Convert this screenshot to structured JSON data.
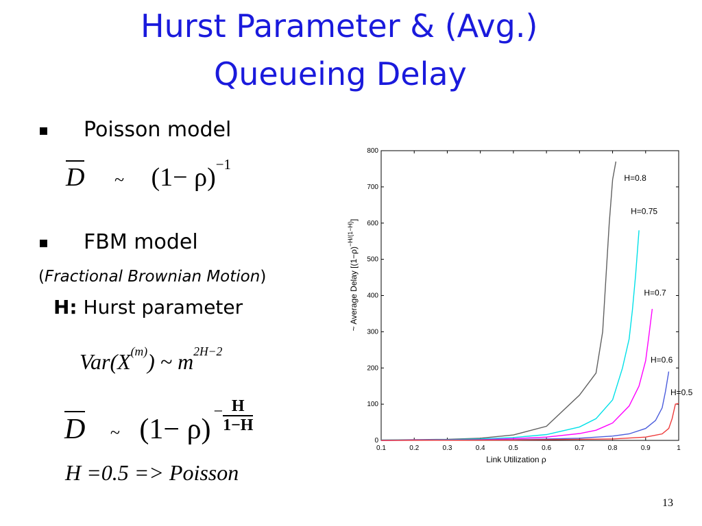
{
  "slide": {
    "title_line1": "Hurst Parameter & (Avg.)",
    "title_line2": "Queueing Delay",
    "bullet_mark": "▪",
    "bullet1": "Poisson model",
    "formula1": {
      "lhs": "D",
      "tilde": "~",
      "rhs": "(1− ρ)",
      "exponent": "−1"
    },
    "bullet2": "FBM model",
    "fbm_open": "(",
    "fbm_full": "Fractional Brownian Motion",
    "fbm_close": ")",
    "h_label": "H:",
    "h_text": "Hurst parameter",
    "formula2": {
      "lhs": "Var(X",
      "sup": "(m)",
      "mid": ") ~ m",
      "exp": "2H−2"
    },
    "formula3": {
      "lhs": "D",
      "tilde": "~",
      "rhs": "(1− ρ)",
      "exp_sign": "−",
      "exp_num": "H",
      "exp_den": "1−H"
    },
    "poisson_eq": "H =0.5 => Poisson",
    "page_number": "13"
  },
  "chart_data": {
    "type": "line",
    "xlabel": "Link Utilization ρ",
    "ylabel": "~ Average Delay [(1−ρ)^(−H/(1−H))]",
    "ylabel_main": "~ Average Delay [(1−ρ)",
    "ylabel_exp": "−H/(1−H)",
    "ylabel_close": "]",
    "xlim": [
      0.1,
      1
    ],
    "ylim": [
      0,
      800
    ],
    "x_ticks": [
      "0.1",
      "0.2",
      "0.3",
      "0.4",
      "0.5",
      "0.6",
      "0.7",
      "0.8",
      "0.9",
      "1"
    ],
    "y_ticks": [
      "0",
      "100",
      "200",
      "300",
      "400",
      "500",
      "600",
      "700",
      "800"
    ],
    "grid": false,
    "series": [
      {
        "name": "H=0.8",
        "color": "#606060",
        "x": [
          0.1,
          0.2,
          0.3,
          0.4,
          0.5,
          0.6,
          0.7,
          0.75,
          0.77,
          0.78,
          0.79,
          0.8,
          0.81
        ],
        "y": [
          1,
          2,
          3,
          6,
          15,
          39,
          125,
          186,
          300,
          450,
          600,
          720,
          770
        ]
      },
      {
        "name": "H=0.75",
        "color": "#00e0e8",
        "x": [
          0.1,
          0.2,
          0.3,
          0.4,
          0.5,
          0.6,
          0.7,
          0.75,
          0.8,
          0.83,
          0.85,
          0.86,
          0.87,
          0.88
        ],
        "y": [
          1,
          1,
          2,
          4,
          8,
          16,
          37,
          60,
          112,
          200,
          280,
          360,
          460,
          580
        ]
      },
      {
        "name": "H=0.7",
        "color": "#ff00ff",
        "x": [
          0.1,
          0.2,
          0.3,
          0.4,
          0.5,
          0.6,
          0.7,
          0.75,
          0.8,
          0.85,
          0.88,
          0.9,
          0.91,
          0.92
        ],
        "y": [
          0,
          1,
          1,
          2,
          5,
          9,
          19,
          28,
          48,
          95,
          150,
          220,
          290,
          363
        ]
      },
      {
        "name": "H=0.6",
        "color": "#4a5cdc",
        "x": [
          0.1,
          0.3,
          0.5,
          0.6,
          0.7,
          0.8,
          0.85,
          0.9,
          0.93,
          0.95,
          0.96,
          0.97
        ],
        "y": [
          0,
          1,
          2,
          4,
          6,
          12,
          18,
          33,
          55,
          90,
          135,
          190
        ]
      },
      {
        "name": "H=0.5",
        "color": "#ee3a3a",
        "x": [
          0.1,
          0.5,
          0.7,
          0.8,
          0.9,
          0.95,
          0.97,
          0.98,
          0.99,
          1.0
        ],
        "y": [
          0,
          1,
          3,
          4,
          9,
          18,
          33,
          60,
          100,
          102
        ]
      }
    ],
    "labels": [
      {
        "text": "H=0.8",
        "x": 0.835,
        "y": 717
      },
      {
        "text": "H=0.75",
        "x": 0.855,
        "y": 625
      },
      {
        "text": "H=0.7",
        "x": 0.895,
        "y": 400
      },
      {
        "text": "H=0.6",
        "x": 0.915,
        "y": 215
      },
      {
        "text": "H=0.5",
        "x": 0.975,
        "y": 125
      }
    ]
  }
}
